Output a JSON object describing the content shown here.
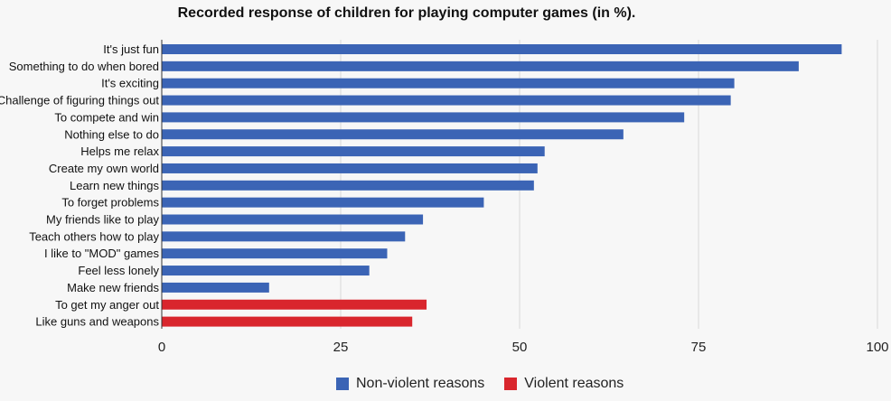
{
  "chart_data": {
    "type": "bar",
    "orientation": "horizontal",
    "title": "Recorded response of children for playing computer games (in %).",
    "xlabel": "",
    "ylabel": "",
    "xlim": [
      0,
      100
    ],
    "xticks": [
      0,
      25,
      50,
      75,
      100
    ],
    "grid": true,
    "legend_position": "bottom",
    "colors": {
      "Non-violent reasons": "#3b64b5",
      "Violent reasons": "#d9262d",
      "grid": "#d9d9d9",
      "axis": "#333333",
      "background": "#f7f7f7"
    },
    "categories": [
      "It's just fun",
      "Something to do when bored",
      "It's exciting",
      "Challenge of figuring things out",
      "To compete and win",
      "Nothing else to do",
      "Helps me relax",
      "Create my own world",
      "Learn new things",
      "To forget problems",
      "My friends like to play",
      "Teach others how to play",
      "I like to \"MOD\" games",
      "Feel less lonely",
      "Make new friends",
      "To get my anger out",
      "Like guns and weapons"
    ],
    "values": [
      95,
      89,
      80,
      79.5,
      73,
      64.5,
      53.5,
      52.5,
      52,
      45,
      36.5,
      34,
      31.5,
      29,
      15,
      37,
      35
    ],
    "series_membership": [
      "Non-violent reasons",
      "Non-violent reasons",
      "Non-violent reasons",
      "Non-violent reasons",
      "Non-violent reasons",
      "Non-violent reasons",
      "Non-violent reasons",
      "Non-violent reasons",
      "Non-violent reasons",
      "Non-violent reasons",
      "Non-violent reasons",
      "Non-violent reasons",
      "Non-violent reasons",
      "Non-violent reasons",
      "Non-violent reasons",
      "Violent reasons",
      "Violent reasons"
    ],
    "legend": [
      {
        "name": "Non-violent reasons",
        "color": "#3b64b5"
      },
      {
        "name": "Violent reasons",
        "color": "#d9262d"
      }
    ]
  }
}
